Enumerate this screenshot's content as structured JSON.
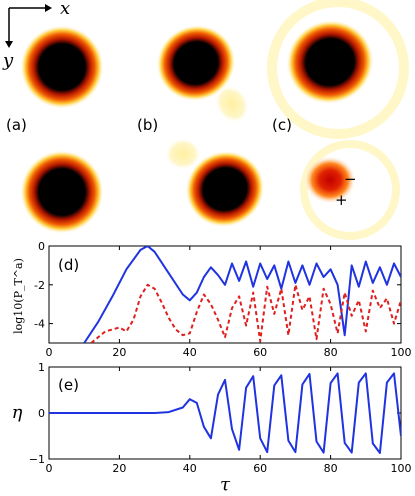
{
  "axes_indicator": {
    "x_label": "x",
    "y_label": "y"
  },
  "panels": [
    {
      "label": "(a)",
      "sign_plus": "",
      "sign_minus": ""
    },
    {
      "label": "(b)",
      "sign_plus": "",
      "sign_minus": ""
    },
    {
      "label": "(c)",
      "sign_plus": "+",
      "sign_minus": "−"
    }
  ],
  "colors": {
    "blue": "#1f33e0",
    "red": "#e01f1f",
    "core": "#000000",
    "mid": "#e03a00",
    "edge": "#ffe04a"
  },
  "chart_data": [
    {
      "type": "line",
      "panel_label": "(d)",
      "ylabel": "log10(P_T^a)",
      "xlim": [
        0,
        100
      ],
      "ylim": [
        -5,
        0
      ],
      "xticks": [
        "0",
        "20",
        "40",
        "60",
        "80",
        "100"
      ],
      "yticks": [
        "0",
        "-2",
        "-4"
      ],
      "grid": false,
      "series": [
        {
          "style": "solid",
          "color": "#1f33e0",
          "x": [
            10,
            14,
            18,
            22,
            26,
            28,
            30,
            34,
            38,
            40,
            42,
            44,
            46,
            48,
            50,
            52,
            54,
            56,
            58,
            60,
            62,
            64,
            66,
            68,
            70,
            72,
            74,
            76,
            78,
            80,
            82,
            84,
            86,
            88,
            90,
            92,
            94,
            96,
            98,
            100
          ],
          "y": [
            -5.0,
            -3.9,
            -2.6,
            -1.2,
            -0.2,
            0.0,
            -0.3,
            -1.4,
            -2.5,
            -2.8,
            -2.4,
            -1.6,
            -1.1,
            -1.5,
            -2.0,
            -0.9,
            -1.8,
            -0.8,
            -2.1,
            -0.9,
            -1.7,
            -1.0,
            -2.2,
            -0.8,
            -1.9,
            -1.0,
            -2.0,
            -0.9,
            -1.6,
            -1.2,
            -2.0,
            -4.6,
            -1.0,
            -2.1,
            -0.8,
            -1.9,
            -1.1,
            -2.0,
            -0.9,
            -1.6
          ]
        },
        {
          "style": "dashed",
          "color": "#e01f1f",
          "x": [
            12,
            16,
            20,
            22,
            24,
            26,
            28,
            30,
            32,
            34,
            36,
            38,
            40,
            42,
            44,
            46,
            48,
            50,
            52,
            54,
            56,
            58,
            60,
            62,
            64,
            66,
            68,
            70,
            72,
            74,
            76,
            78,
            80,
            82,
            84,
            86,
            88,
            90,
            92,
            94,
            96,
            98,
            100
          ],
          "y": [
            -5.0,
            -4.4,
            -4.2,
            -4.4,
            -3.8,
            -2.6,
            -2.0,
            -2.2,
            -2.9,
            -3.7,
            -4.3,
            -4.6,
            -4.5,
            -3.4,
            -2.5,
            -3.0,
            -3.8,
            -4.7,
            -3.2,
            -2.6,
            -4.1,
            -2.4,
            -4.9,
            -2.1,
            -3.5,
            -2.2,
            -4.6,
            -2.0,
            -3.3,
            -2.6,
            -4.8,
            -2.2,
            -3.0,
            -4.5,
            -2.4,
            -3.6,
            -2.8,
            -4.4,
            -2.3,
            -3.2,
            -2.7,
            -4.0,
            -2.8
          ]
        }
      ]
    },
    {
      "type": "line",
      "panel_label": "(e)",
      "xlabel": "τ",
      "ylabel": "η",
      "xlim": [
        0,
        100
      ],
      "ylim": [
        -1,
        1
      ],
      "xticks": [
        "0",
        "20",
        "40",
        "60",
        "80",
        "100"
      ],
      "yticks": [
        "1",
        "0",
        "−1"
      ],
      "grid": false,
      "series": [
        {
          "style": "solid",
          "color": "#1f33e0",
          "x": [
            0,
            30,
            34,
            38,
            40,
            42,
            44,
            46,
            48,
            50,
            52,
            54,
            56,
            58,
            60,
            62,
            64,
            66,
            68,
            70,
            72,
            74,
            76,
            78,
            80,
            82,
            84,
            86,
            88,
            90,
            92,
            94,
            96,
            98,
            100
          ],
          "y": [
            0,
            0,
            0.02,
            0.12,
            0.3,
            0.22,
            -0.3,
            -0.55,
            0.4,
            0.72,
            -0.35,
            -0.8,
            0.55,
            0.8,
            -0.55,
            -0.85,
            0.6,
            0.82,
            -0.6,
            -0.85,
            0.62,
            0.85,
            -0.62,
            -0.86,
            0.65,
            0.86,
            -0.65,
            -0.86,
            0.66,
            0.86,
            -0.66,
            -0.87,
            0.66,
            0.86,
            -0.5
          ]
        }
      ]
    }
  ]
}
